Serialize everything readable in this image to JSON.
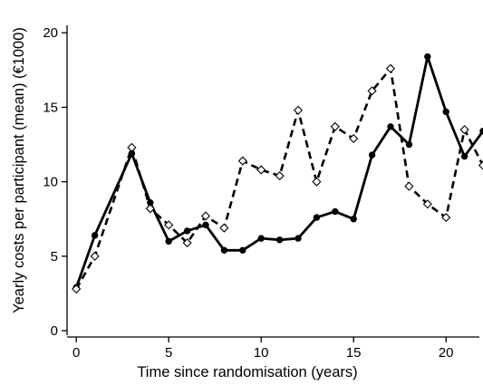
{
  "chart_data": {
    "type": "line",
    "title": "",
    "xlabel": "Time since randomisation (years)",
    "ylabel": "Yearly costs per participant (mean) (€1000)",
    "xlim": [
      -0.5,
      22
    ],
    "ylim": [
      -0.3,
      20.5
    ],
    "xticks": [
      0,
      5,
      10,
      15,
      20
    ],
    "yticks": [
      0,
      5,
      10,
      15,
      20
    ],
    "grid": false,
    "legend": "none",
    "series": [
      {
        "style": "solid",
        "marker": "filled-circle",
        "color": "#000000",
        "x": [
          0,
          1,
          3,
          4,
          5,
          6,
          7,
          8,
          9,
          10,
          11,
          12,
          13,
          14,
          15,
          16,
          17,
          18,
          19,
          20,
          21,
          22
        ],
        "y": [
          2.9,
          6.4,
          11.9,
          8.6,
          6.0,
          6.7,
          7.1,
          5.4,
          5.4,
          6.2,
          6.1,
          6.2,
          7.6,
          8.0,
          7.5,
          11.8,
          13.7,
          12.5,
          18.4,
          14.7,
          11.7,
          13.4
        ]
      },
      {
        "style": "dashed",
        "marker": "open-diamond",
        "color": "#000000",
        "x": [
          0,
          1,
          3,
          4,
          5,
          6,
          7,
          8,
          9,
          10,
          11,
          12,
          13,
          14,
          15,
          16,
          17,
          18,
          19,
          20,
          21,
          22
        ],
        "y": [
          2.8,
          5.0,
          12.3,
          8.2,
          7.1,
          5.9,
          7.7,
          6.9,
          11.4,
          10.8,
          10.4,
          14.8,
          10.0,
          13.7,
          12.9,
          16.1,
          17.6,
          9.7,
          8.5,
          7.6,
          13.5,
          11.1
        ]
      }
    ]
  }
}
